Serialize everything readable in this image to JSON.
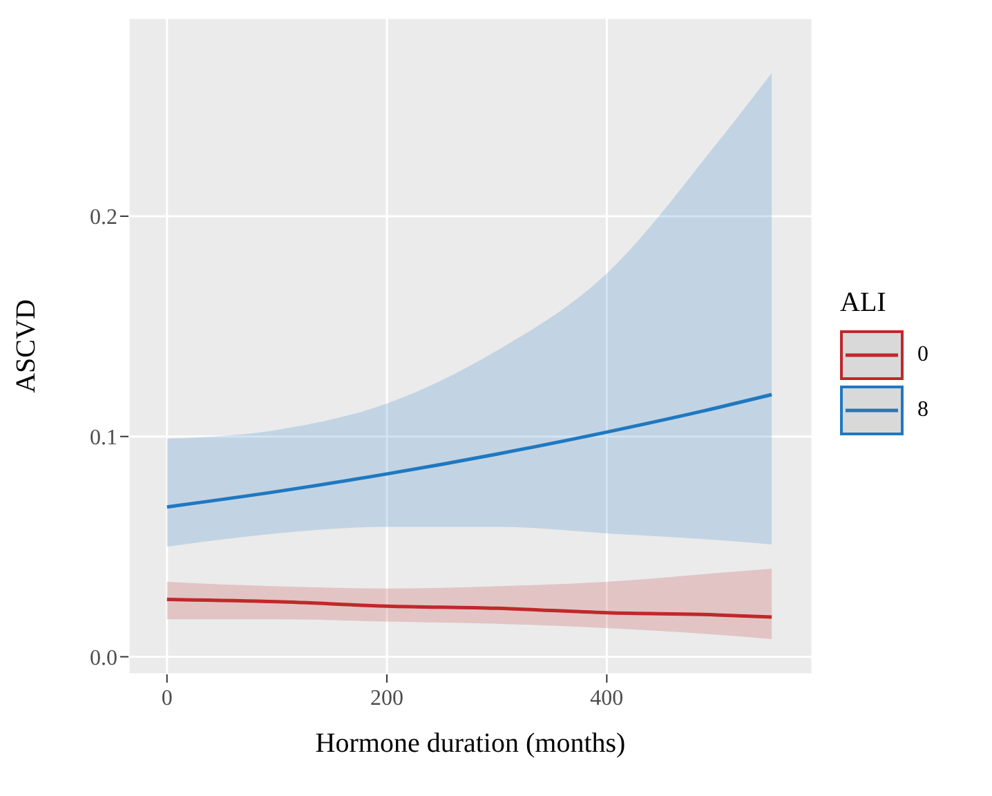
{
  "chart_data": {
    "type": "line",
    "xlabel": "Hormone duration (months)",
    "ylabel": "ASCVD",
    "legend_title": "ALI",
    "x": [
      0,
      100,
      200,
      300,
      400,
      500,
      550
    ],
    "series": [
      {
        "name": "0",
        "color": "#c0282a",
        "values": [
          0.026,
          0.025,
          0.023,
          0.022,
          0.02,
          0.019,
          0.018
        ],
        "lower": [
          0.017,
          0.017,
          0.016,
          0.015,
          0.013,
          0.01,
          0.008
        ],
        "upper": [
          0.034,
          0.032,
          0.031,
          0.032,
          0.034,
          0.038,
          0.04
        ]
      },
      {
        "name": "8",
        "color": "#1f78c1",
        "values": [
          0.068,
          0.075,
          0.083,
          0.092,
          0.102,
          0.113,
          0.119
        ],
        "lower": [
          0.05,
          0.056,
          0.059,
          0.059,
          0.056,
          0.053,
          0.051
        ],
        "upper": [
          0.099,
          0.103,
          0.115,
          0.139,
          0.174,
          0.233,
          0.265
        ]
      }
    ],
    "xlim": [
      -35,
      587
    ],
    "ylim": [
      -0.008,
      0.29
    ],
    "xticks": [
      0,
      200,
      400
    ],
    "yticks": [
      {
        "value": 0,
        "label": "0.0"
      },
      {
        "value": 0.1,
        "label": "0.1"
      },
      {
        "value": 0.2,
        "label": "0.2"
      }
    ],
    "grid": true,
    "legend": "right",
    "marker": "none",
    "line_style": "solid"
  }
}
